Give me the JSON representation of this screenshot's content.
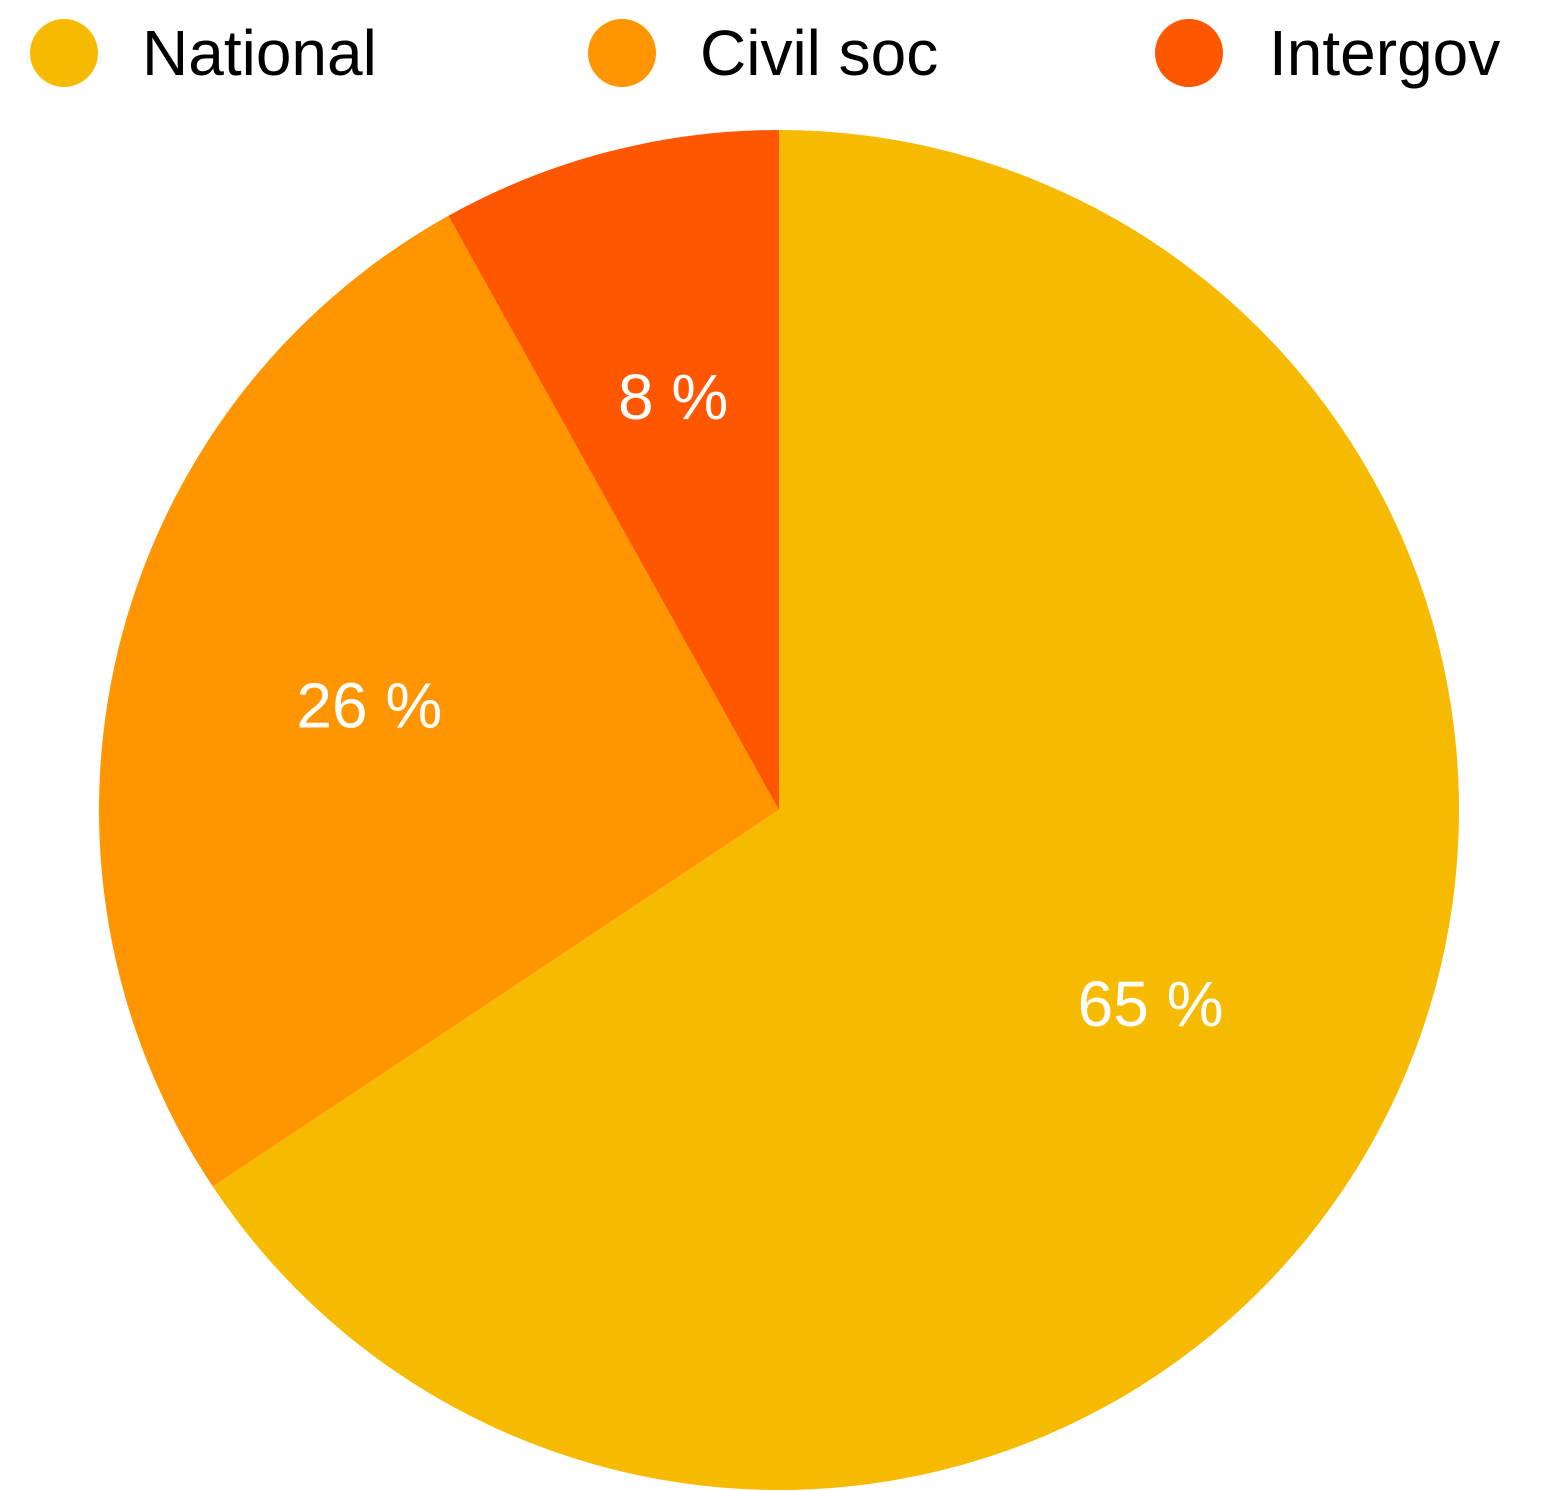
{
  "chart_data": {
    "type": "pie",
    "title": "",
    "legend_position": "top",
    "slices": [
      {
        "label": "National",
        "value": 65,
        "display": "65 %",
        "color": "#F6BB00"
      },
      {
        "label": "Civil soc",
        "value": 26,
        "display": "26 %",
        "color": "#FF9500"
      },
      {
        "label": "Intergov",
        "value": 8,
        "display": "8 %",
        "color": "#FF5600"
      }
    ]
  }
}
